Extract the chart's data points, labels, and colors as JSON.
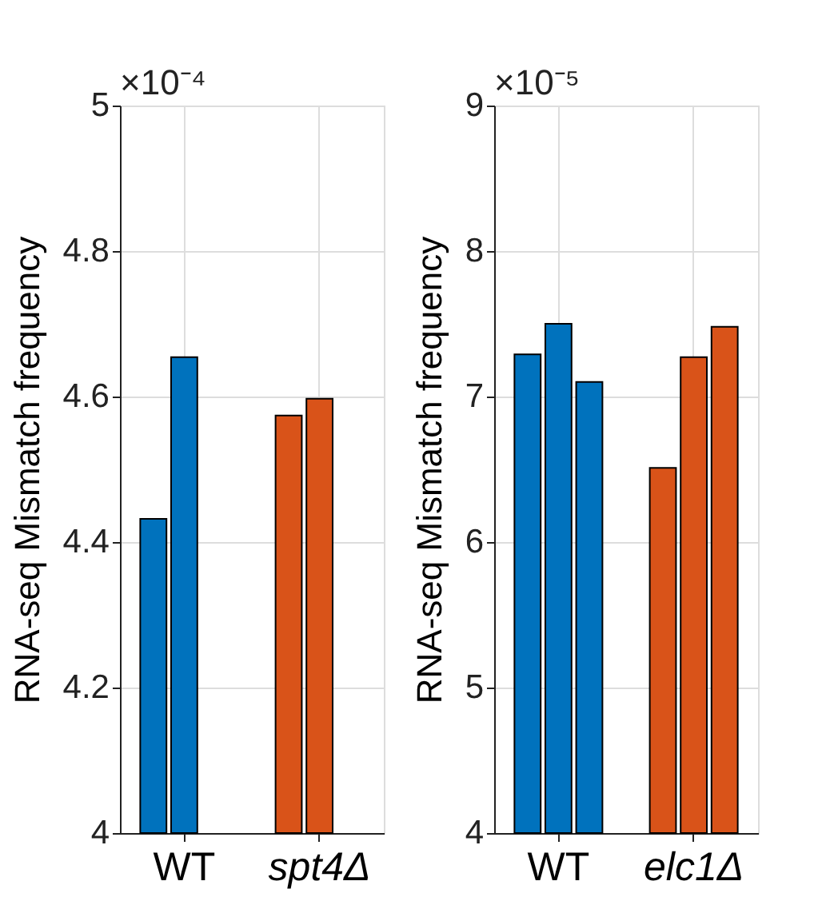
{
  "chart_data": [
    {
      "type": "bar",
      "ylabel": "RNA-seq Mismatch frequency",
      "annotations": [
        "×10⁻⁴"
      ],
      "categories": [
        "WT",
        "spt4Δ"
      ],
      "series": [
        {
          "colors": [
            "#0072bd",
            "#d95319"
          ],
          "values": [
            4.432,
            4.574
          ]
        },
        {
          "colors": [
            "#0072bd",
            "#d95319"
          ],
          "values": [
            4.654,
            4.597
          ]
        }
      ],
      "ylim": [
        4,
        5
      ],
      "yticks": [
        4,
        4.2,
        4.4,
        4.6,
        4.8,
        5
      ],
      "grid": true
    },
    {
      "type": "bar",
      "ylabel": "RNA-seq Mismatch frequency",
      "annotations": [
        "×10⁻⁵"
      ],
      "categories": [
        "WT",
        "elc1Δ"
      ],
      "series": [
        {
          "colors": [
            "#0072bd",
            "#d95319"
          ],
          "values": [
            7.29,
            6.51
          ]
        },
        {
          "colors": [
            "#0072bd",
            "#d95319"
          ],
          "values": [
            7.5,
            7.27
          ]
        },
        {
          "colors": [
            "#0072bd",
            "#d95319"
          ],
          "values": [
            7.1,
            7.48
          ]
        }
      ],
      "ylim": [
        4,
        9
      ],
      "yticks": [
        4,
        5,
        6,
        7,
        8,
        9
      ],
      "grid": true
    }
  ]
}
